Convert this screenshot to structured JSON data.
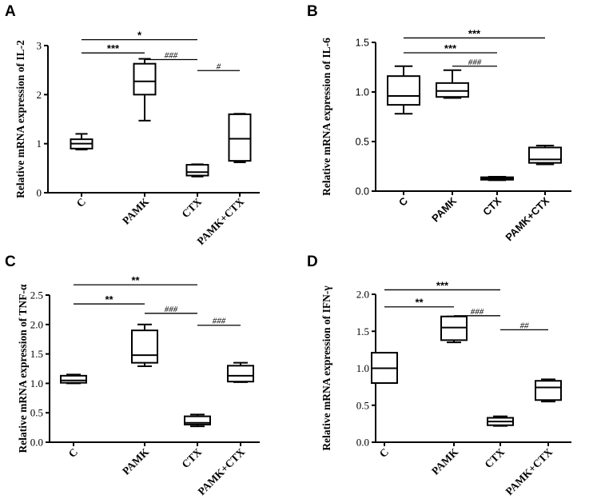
{
  "chart_data": [
    {
      "panel": "A",
      "type": "box",
      "ylabel": "Relative mRNA expression of IL-2",
      "ylim": [
        0,
        3
      ],
      "yticks": [
        "0",
        "1",
        "2",
        "3"
      ],
      "categories": [
        "C",
        "PAMK",
        "CTX",
        "PAMK+CTX"
      ],
      "boxes": [
        {
          "category": "C",
          "min": 0.88,
          "q1": 0.9,
          "median": 1.0,
          "q3": 1.09,
          "max": 1.2
        },
        {
          "category": "PAMK",
          "min": 1.47,
          "q1": 2.0,
          "median": 2.27,
          "q3": 2.63,
          "max": 2.73
        },
        {
          "category": "CTX",
          "min": 0.33,
          "q1": 0.35,
          "median": 0.42,
          "q3": 0.57,
          "max": 0.58
        },
        {
          "category": "PAMK+CTX",
          "min": 0.62,
          "q1": 0.65,
          "median": 1.1,
          "q3": 1.6,
          "max": 1.61
        }
      ],
      "significance": [
        {
          "from": "C",
          "to": "CTX",
          "label": "*",
          "level": 1.04
        },
        {
          "from": "C",
          "to": "PAMK",
          "label": "***",
          "level": 0.95
        },
        {
          "from": "PAMK",
          "to": "CTX",
          "label": "###",
          "level": 0.905
        },
        {
          "from": "CTX",
          "to": "PAMK+CTX",
          "label": "#",
          "level": 0.83
        }
      ]
    },
    {
      "panel": "B",
      "type": "box",
      "ylabel": "Relative mRNA expression of IL-6",
      "ylim": [
        0,
        1.5
      ],
      "yticks": [
        "0.0",
        "0.5",
        "1.0",
        "1.5"
      ],
      "categories": [
        "C",
        "PAMK",
        "CTX",
        "PAMK+CTX"
      ],
      "boxes": [
        {
          "category": "C",
          "min": 0.78,
          "q1": 0.87,
          "median": 0.96,
          "q3": 1.16,
          "max": 1.26
        },
        {
          "category": "PAMK",
          "min": 0.94,
          "q1": 0.95,
          "median": 1.01,
          "q3": 1.09,
          "max": 1.22
        },
        {
          "category": "CTX",
          "min": 0.11,
          "q1": 0.115,
          "median": 0.125,
          "q3": 0.14,
          "max": 0.145
        },
        {
          "category": "PAMK+CTX",
          "min": 0.27,
          "q1": 0.285,
          "median": 0.32,
          "q3": 0.44,
          "max": 0.46
        }
      ],
      "significance": [
        {
          "from": "C",
          "to": "PAMK+CTX",
          "label": "***",
          "level": 1.03
        },
        {
          "from": "C",
          "to": "CTX",
          "label": "***",
          "level": 0.93
        },
        {
          "from": "PAMK",
          "to": "CTX",
          "label": "###",
          "level": 0.84
        }
      ]
    },
    {
      "panel": "C",
      "type": "box",
      "ylabel": "Relative mRNA expression of TNF-α",
      "ylim": [
        0,
        2.5
      ],
      "yticks": [
        "0.0",
        "0.5",
        "1.0",
        "1.5",
        "2.0",
        "2.5"
      ],
      "categories": [
        "C",
        "PAMK",
        "CTX",
        "PAMK+CTX"
      ],
      "boxes": [
        {
          "category": "C",
          "min": 1.0,
          "q1": 1.01,
          "median": 1.05,
          "q3": 1.13,
          "max": 1.15
        },
        {
          "category": "PAMK",
          "min": 1.29,
          "q1": 1.35,
          "median": 1.48,
          "q3": 1.9,
          "max": 2.0
        },
        {
          "category": "CTX",
          "min": 0.27,
          "q1": 0.3,
          "median": 0.33,
          "q3": 0.44,
          "max": 0.47
        },
        {
          "category": "PAMK+CTX",
          "min": 1.02,
          "q1": 1.03,
          "median": 1.13,
          "q3": 1.3,
          "max": 1.35
        }
      ],
      "significance": [
        {
          "from": "C",
          "to": "CTX",
          "label": "**",
          "level": 1.07
        },
        {
          "from": "C",
          "to": "PAMK",
          "label": "**",
          "level": 0.94
        },
        {
          "from": "PAMK",
          "to": "CTX",
          "label": "###",
          "level": 0.876
        },
        {
          "from": "CTX",
          "to": "PAMK+CTX",
          "label": "###",
          "level": 0.795
        }
      ]
    },
    {
      "panel": "D",
      "type": "box",
      "ylabel": "Relative mRNA expression of IFN-γ",
      "ylim": [
        0,
        2.0
      ],
      "yticks": [
        "0.0",
        "0.5",
        "1.0",
        "1.5",
        "2.0"
      ],
      "categories": [
        "C",
        "PAMK",
        "CTX",
        "PAMK+CTX"
      ],
      "boxes": [
        {
          "category": "C",
          "min": 0.8,
          "q1": 0.8,
          "median": 1.0,
          "q3": 1.21,
          "max": 1.21
        },
        {
          "category": "PAMK",
          "min": 1.35,
          "q1": 1.38,
          "median": 1.55,
          "q3": 1.7,
          "max": 1.7
        },
        {
          "category": "CTX",
          "min": 0.22,
          "q1": 0.23,
          "median": 0.28,
          "q3": 0.33,
          "max": 0.35
        },
        {
          "category": "PAMK+CTX",
          "min": 0.55,
          "q1": 0.57,
          "median": 0.74,
          "q3": 0.83,
          "max": 0.85
        }
      ],
      "significance": [
        {
          "from": "C",
          "to": "CTX",
          "label": "***",
          "level": 1.03
        },
        {
          "from": "C",
          "to": "PAMK",
          "label": "**",
          "level": 0.915
        },
        {
          "from": "PAMK",
          "to": "CTX",
          "label": "###",
          "level": 0.855
        },
        {
          "from": "CTX",
          "to": "PAMK+CTX",
          "label": "##",
          "level": 0.76
        }
      ]
    }
  ]
}
